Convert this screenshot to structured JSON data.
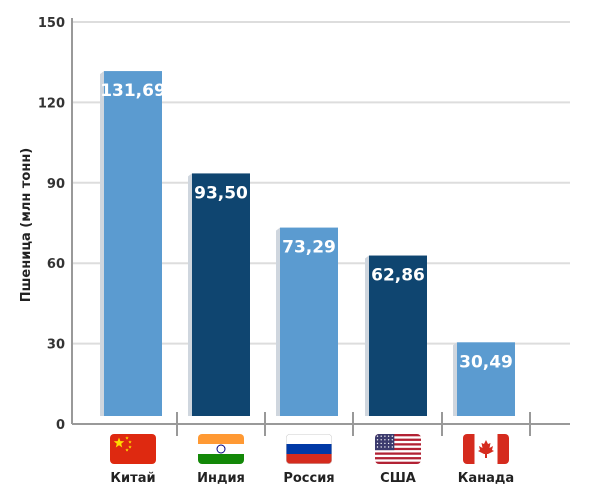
{
  "chart_data": {
    "type": "bar",
    "categories": [
      "Китай",
      "Индия",
      "Россия",
      "США",
      "Канада"
    ],
    "values": [
      131.69,
      93.5,
      73.29,
      62.86,
      30.49
    ],
    "value_labels": [
      "131,69",
      "93,50",
      "73,29",
      "62,86",
      "30,49"
    ],
    "ylabel": "Пшеница (млн тонн)",
    "ylim": [
      0,
      150
    ],
    "yticks": [
      "0",
      "30",
      "60",
      "90",
      "120",
      "150"
    ],
    "grid": true,
    "flags": [
      "china-flag-icon",
      "india-flag-icon",
      "russia-flag-icon",
      "usa-flag-icon",
      "canada-flag-icon"
    ],
    "colors": {
      "light": "#5b9bd0",
      "dark": "#0f4570",
      "grid": "#dddddd",
      "axis": "#999999"
    }
  }
}
